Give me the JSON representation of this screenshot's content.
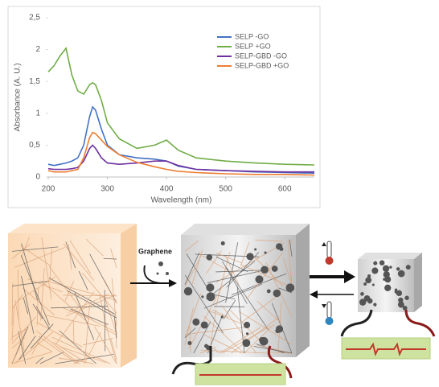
{
  "chart_data": {
    "type": "line",
    "xlabel": "Wavelength (nm)",
    "ylabel": "Absorbance (A. U.)",
    "x": [
      200,
      210,
      220,
      230,
      240,
      250,
      260,
      270,
      275,
      280,
      290,
      300,
      320,
      350,
      380,
      400,
      420,
      450,
      500,
      550,
      600,
      650
    ],
    "series": [
      {
        "name": "SELP -GO",
        "color": "#4472c4",
        "values": [
          0.2,
          0.18,
          0.2,
          0.22,
          0.25,
          0.3,
          0.5,
          0.95,
          1.1,
          1.05,
          0.75,
          0.5,
          0.35,
          0.3,
          0.28,
          0.25,
          0.17,
          0.12,
          0.1,
          0.08,
          0.07,
          0.06
        ]
      },
      {
        "name": "SELP +GO",
        "color": "#70ad47",
        "values": [
          1.65,
          1.75,
          1.9,
          2.02,
          1.6,
          1.35,
          1.3,
          1.45,
          1.48,
          1.45,
          1.2,
          0.85,
          0.6,
          0.45,
          0.5,
          0.58,
          0.42,
          0.3,
          0.25,
          0.22,
          0.2,
          0.19
        ]
      },
      {
        "name": "SELP-GBD -GO",
        "color": "#7030a0",
        "values": [
          0.13,
          0.12,
          0.12,
          0.12,
          0.13,
          0.15,
          0.25,
          0.45,
          0.5,
          0.45,
          0.3,
          0.22,
          0.2,
          0.22,
          0.25,
          0.25,
          0.18,
          0.12,
          0.1,
          0.09,
          0.08,
          0.08
        ]
      },
      {
        "name": "SELP-GBD +GO",
        "color": "#ed7d31",
        "values": [
          0.1,
          0.08,
          0.08,
          0.08,
          0.1,
          0.12,
          0.3,
          0.62,
          0.7,
          0.68,
          0.58,
          0.48,
          0.35,
          0.23,
          0.16,
          0.12,
          0.09,
          0.07,
          0.05,
          0.04,
          0.04,
          0.03
        ]
      }
    ],
    "xlim": [
      200,
      650
    ],
    "xticks": [
      200,
      300,
      400,
      500,
      600
    ],
    "ylim": [
      0,
      2.5
    ],
    "yticks": [
      0,
      {
        "value": 0.5,
        "label": "0,5"
      },
      1,
      {
        "value": 1.5,
        "label": "1,5"
      },
      2,
      {
        "value": 2.5,
        "label": "2,5"
      }
    ],
    "legend": "top-right"
  },
  "diagram": {
    "graphene_label": "Graphene"
  }
}
